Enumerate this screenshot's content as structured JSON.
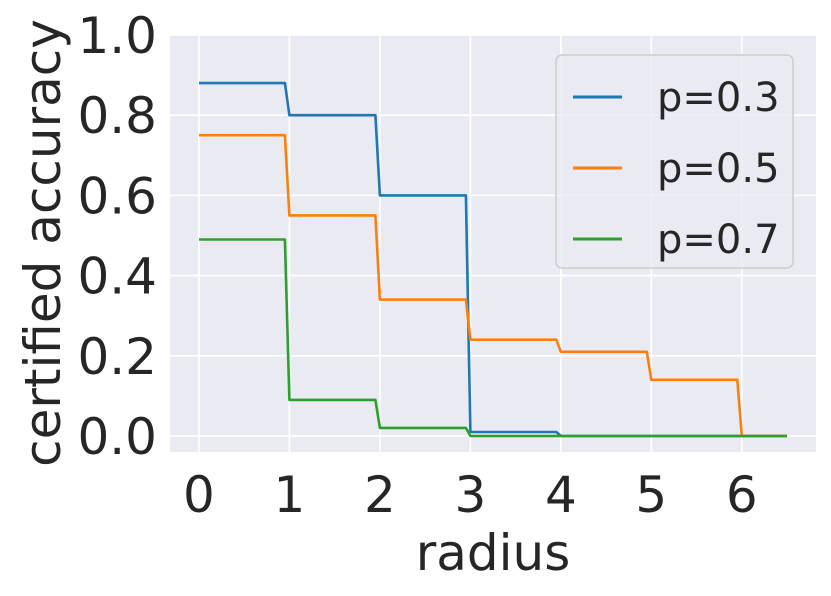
{
  "chart_data": {
    "type": "line",
    "xlabel": "radius",
    "ylabel": "certified accuracy",
    "xlim": [
      -0.32,
      6.82
    ],
    "ylim": [
      -0.04,
      1.0
    ],
    "xticks": [
      "0",
      "1",
      "2",
      "3",
      "4",
      "5",
      "6"
    ],
    "yticks": [
      "0.0",
      "0.2",
      "0.4",
      "0.6",
      "0.8",
      "1.0"
    ],
    "grid": true,
    "legend_position": "top-right",
    "series": [
      {
        "name": "p=0.3",
        "color": "#1f77b4",
        "x": [
          0,
          0.95,
          1,
          1.95,
          2,
          2.95,
          3,
          3.95,
          4,
          6.5
        ],
        "y": [
          0.88,
          0.88,
          0.8,
          0.8,
          0.6,
          0.6,
          0.01,
          0.01,
          0.0,
          0.0
        ]
      },
      {
        "name": "p=0.5",
        "color": "#ff7f0e",
        "x": [
          0,
          0.95,
          1,
          1.95,
          2,
          2.95,
          3,
          3.95,
          4,
          4.95,
          5,
          5.95,
          6,
          6.5
        ],
        "y": [
          0.75,
          0.75,
          0.55,
          0.55,
          0.34,
          0.34,
          0.24,
          0.24,
          0.21,
          0.21,
          0.14,
          0.14,
          0.0,
          0.0
        ]
      },
      {
        "name": "p=0.7",
        "color": "#2ca02c",
        "x": [
          0,
          0.95,
          1,
          1.95,
          2,
          2.95,
          3,
          3.95,
          4,
          6.5
        ],
        "y": [
          0.49,
          0.49,
          0.09,
          0.09,
          0.02,
          0.02,
          0.0,
          0.0,
          0.0,
          0.0
        ]
      }
    ]
  }
}
